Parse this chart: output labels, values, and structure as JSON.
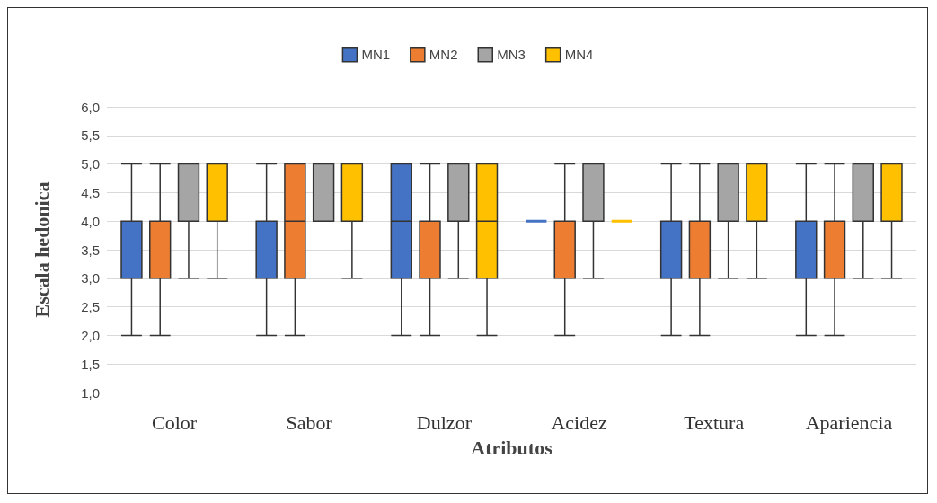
{
  "chart_data": {
    "type": "box",
    "xlabel": "Atributos",
    "ylabel": "Escala hedonica",
    "categories": [
      "Color",
      "Sabor",
      "Dulzor",
      "Acidez",
      "Textura",
      "Apariencia"
    ],
    "ylim": [
      1,
      6
    ],
    "yticks": [
      {
        "value": 1,
        "label": "1,0"
      },
      {
        "value": 1.5,
        "label": "1,5"
      },
      {
        "value": 2,
        "label": "2,0"
      },
      {
        "value": 2.5,
        "label": "2,5"
      },
      {
        "value": 3,
        "label": "3,0"
      },
      {
        "value": 3.5,
        "label": "3,5"
      },
      {
        "value": 4,
        "label": "4,0"
      },
      {
        "value": 4.5,
        "label": "4,5"
      },
      {
        "value": 5,
        "label": "5,0"
      },
      {
        "value": 5.5,
        "label": "5,5"
      },
      {
        "value": 6,
        "label": "6,0"
      }
    ],
    "grid": "y",
    "legend": "top",
    "series": [
      {
        "name": "MN1",
        "color": "#4472c4",
        "boxes": [
          {
            "low": 2,
            "q1": 3,
            "median": 4,
            "q3": 4,
            "high": 5
          },
          {
            "low": 2,
            "q1": 3,
            "median": 4,
            "q3": 4,
            "high": 5
          },
          {
            "low": 2,
            "q1": 3,
            "median": 4,
            "q3": 5,
            "high": 5
          },
          {
            "low": 4,
            "q1": 4,
            "median": 4,
            "q3": 4,
            "high": 4
          },
          {
            "low": 2,
            "q1": 3,
            "median": 4,
            "q3": 4,
            "high": 5
          },
          {
            "low": 2,
            "q1": 3,
            "median": 4,
            "q3": 4,
            "high": 5
          }
        ]
      },
      {
        "name": "MN2",
        "color": "#ed7d31",
        "boxes": [
          {
            "low": 2,
            "q1": 3,
            "median": 4,
            "q3": 4,
            "high": 5
          },
          {
            "low": 2,
            "q1": 3,
            "median": 4,
            "q3": 5,
            "high": 5
          },
          {
            "low": 2,
            "q1": 3,
            "median": 4,
            "q3": 4,
            "high": 5
          },
          {
            "low": 2,
            "q1": 3,
            "median": 4,
            "q3": 4,
            "high": 5
          },
          {
            "low": 2,
            "q1": 3,
            "median": 4,
            "q3": 4,
            "high": 5
          },
          {
            "low": 2,
            "q1": 3,
            "median": 4,
            "q3": 4,
            "high": 5
          }
        ]
      },
      {
        "name": "MN3",
        "color": "#a5a5a5",
        "boxes": [
          {
            "low": 3,
            "q1": 4,
            "median": 5,
            "q3": 5,
            "high": 5
          },
          {
            "low": 4,
            "q1": 4,
            "median": 5,
            "q3": 5,
            "high": 5
          },
          {
            "low": 3,
            "q1": 4,
            "median": 5,
            "q3": 5,
            "high": 5
          },
          {
            "low": 3,
            "q1": 4,
            "median": 5,
            "q3": 5,
            "high": 5
          },
          {
            "low": 3,
            "q1": 4,
            "median": 5,
            "q3": 5,
            "high": 5
          },
          {
            "low": 3,
            "q1": 4,
            "median": 5,
            "q3": 5,
            "high": 5
          }
        ]
      },
      {
        "name": "MN4",
        "color": "#ffc000",
        "boxes": [
          {
            "low": 3,
            "q1": 4,
            "median": 5,
            "q3": 5,
            "high": 5
          },
          {
            "low": 3,
            "q1": 4,
            "median": 5,
            "q3": 5,
            "high": 5
          },
          {
            "low": 2,
            "q1": 3,
            "median": 4,
            "q3": 5,
            "high": 5
          },
          {
            "low": 4,
            "q1": 4,
            "median": 4,
            "q3": 4,
            "high": 4
          },
          {
            "low": 3,
            "q1": 4,
            "median": 5,
            "q3": 5,
            "high": 5
          },
          {
            "low": 3,
            "q1": 4,
            "median": 5,
            "q3": 5,
            "high": 5
          }
        ]
      }
    ]
  }
}
